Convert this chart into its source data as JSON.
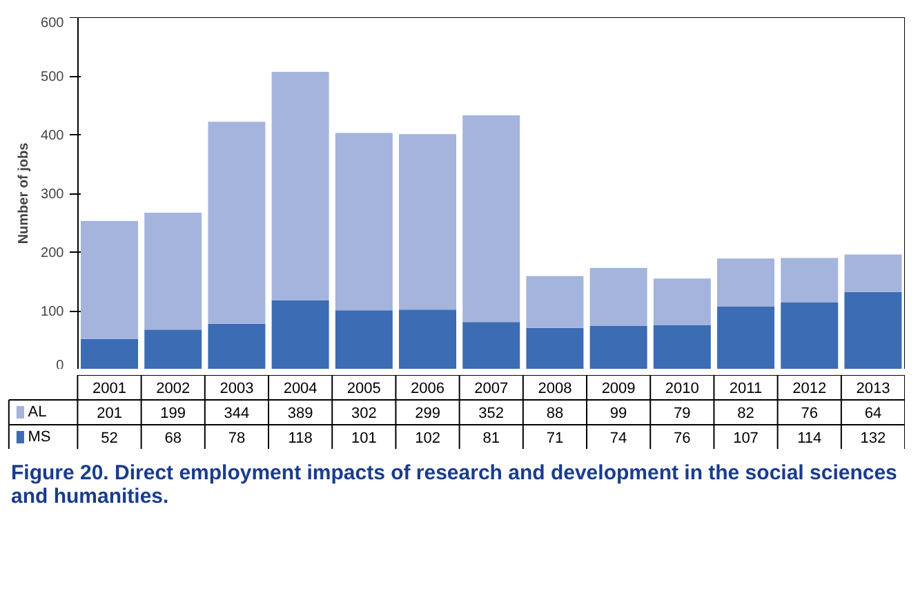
{
  "chart_data": {
    "type": "bar",
    "stacked": true,
    "ylabel": "Number of jobs",
    "categories": [
      "2001",
      "2002",
      "2003",
      "2004",
      "2005",
      "2006",
      "2007",
      "2008",
      "2009",
      "2010",
      "2011",
      "2012",
      "2013"
    ],
    "series": [
      {
        "name": "MS",
        "color": "#3b6cb4",
        "values": [
          52,
          68,
          78,
          118,
          101,
          102,
          81,
          71,
          74,
          76,
          107,
          114,
          132
        ]
      },
      {
        "name": "AL",
        "color": "#a4b4dd",
        "values": [
          201,
          199,
          344,
          389,
          302,
          299,
          352,
          88,
          99,
          79,
          82,
          76,
          64
        ]
      }
    ],
    "ylim": [
      0,
      600
    ],
    "yticks": [
      0,
      100,
      200,
      300,
      400,
      500,
      600
    ],
    "grid": false,
    "legend": "bottom",
    "data_labels": true,
    "annotations": [
      "Figure 20. Direct employment impacts of research and development in the social sciences and humanities."
    ]
  }
}
